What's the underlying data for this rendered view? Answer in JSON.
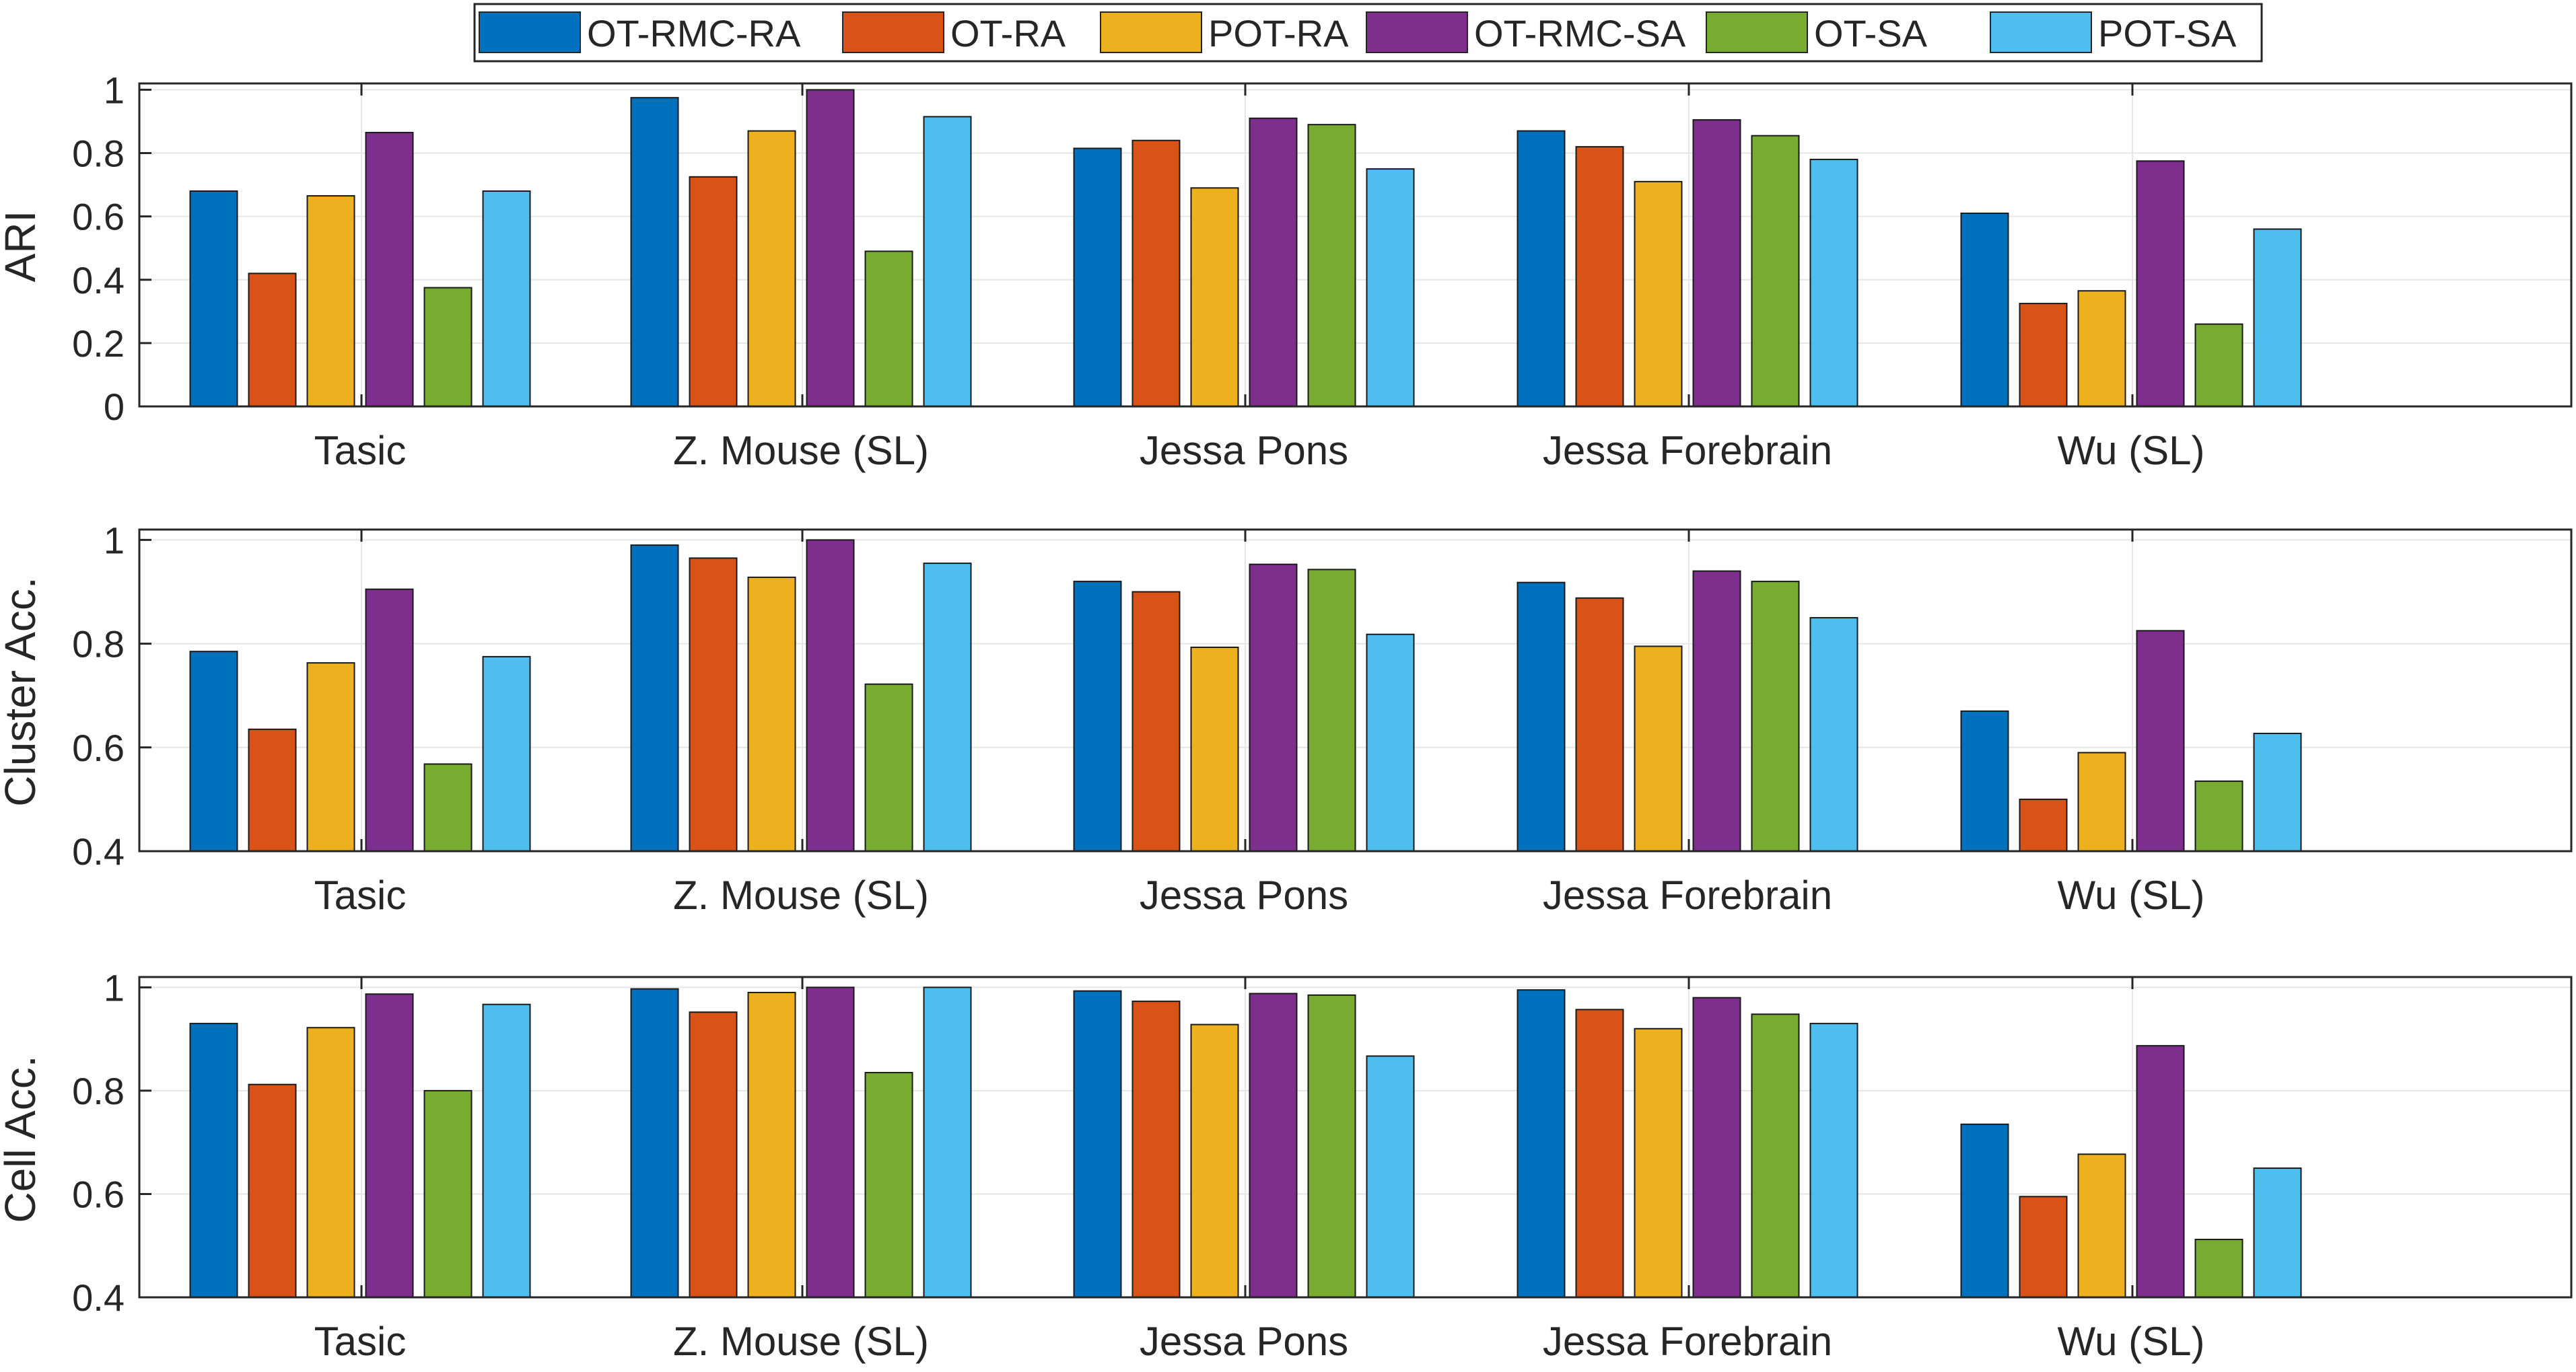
{
  "chart_data": {
    "type": "bar",
    "legend": {
      "position": "top",
      "entries": [
        "OT-RMC-RA",
        "OT-RA",
        "POT-RA",
        "OT-RMC-SA",
        "OT-SA",
        "POT-SA"
      ],
      "colors": [
        "#0072BD",
        "#D95319",
        "#EDB120",
        "#7E2F8E",
        "#77AC30",
        "#4DBEEE"
      ]
    },
    "categories": [
      "Tasic",
      "Z. Mouse (SL)",
      "Jessa Pons",
      "Jessa Forebrain",
      "Wu (SL)"
    ],
    "panels": [
      {
        "ylabel": "ARI",
        "ylim": [
          0,
          1.02
        ],
        "yticks": [
          "0",
          "0.2",
          "0.4",
          "0.6",
          "0.8",
          "1"
        ],
        "yticks_values": [
          0,
          0.2,
          0.4,
          0.6,
          0.8,
          1
        ],
        "grid": true,
        "series": [
          {
            "name": "OT-RMC-RA",
            "values": [
              0.68,
              0.975,
              0.815,
              0.87,
              0.61
            ]
          },
          {
            "name": "OT-RA",
            "values": [
              0.42,
              0.725,
              0.84,
              0.82,
              0.325
            ]
          },
          {
            "name": "POT-RA",
            "values": [
              0.665,
              0.87,
              0.69,
              0.71,
              0.365
            ]
          },
          {
            "name": "OT-RMC-SA",
            "values": [
              0.865,
              1.0,
              0.91,
              0.905,
              0.775
            ]
          },
          {
            "name": "OT-SA",
            "values": [
              0.375,
              0.49,
              0.89,
              0.855,
              0.26
            ]
          },
          {
            "name": "POT-SA",
            "values": [
              0.68,
              0.915,
              0.75,
              0.78,
              0.56
            ]
          }
        ]
      },
      {
        "ylabel": "Cluster Acc.",
        "ylim": [
          0.4,
          1.02
        ],
        "yticks": [
          "0.4",
          "0.6",
          "0.8",
          "1"
        ],
        "yticks_values": [
          0.4,
          0.6,
          0.8,
          1
        ],
        "grid": true,
        "series": [
          {
            "name": "OT-RMC-RA",
            "values": [
              0.785,
              0.99,
              0.92,
              0.918,
              0.67
            ]
          },
          {
            "name": "OT-RA",
            "values": [
              0.635,
              0.965,
              0.9,
              0.888,
              0.5
            ]
          },
          {
            "name": "POT-RA",
            "values": [
              0.763,
              0.928,
              0.793,
              0.795,
              0.59
            ]
          },
          {
            "name": "OT-RMC-SA",
            "values": [
              0.905,
              1.0,
              0.953,
              0.94,
              0.825
            ]
          },
          {
            "name": "OT-SA",
            "values": [
              0.568,
              0.722,
              0.943,
              0.92,
              0.535
            ]
          },
          {
            "name": "POT-SA",
            "values": [
              0.775,
              0.955,
              0.818,
              0.85,
              0.627
            ]
          }
        ]
      },
      {
        "ylabel": "Cell Acc.",
        "ylim": [
          0.4,
          1.02
        ],
        "yticks": [
          "0.4",
          "0.6",
          "0.8",
          "1"
        ],
        "yticks_values": [
          0.4,
          0.6,
          0.8,
          1
        ],
        "grid": true,
        "series": [
          {
            "name": "OT-RMC-RA",
            "values": [
              0.93,
              0.997,
              0.993,
              0.995,
              0.735
            ]
          },
          {
            "name": "OT-RA",
            "values": [
              0.812,
              0.952,
              0.973,
              0.957,
              0.595
            ]
          },
          {
            "name": "POT-RA",
            "values": [
              0.922,
              0.99,
              0.928,
              0.92,
              0.677
            ]
          },
          {
            "name": "OT-RMC-SA",
            "values": [
              0.987,
              1.0,
              0.988,
              0.98,
              0.887
            ]
          },
          {
            "name": "OT-SA",
            "values": [
              0.8,
              0.835,
              0.985,
              0.948,
              0.512
            ]
          },
          {
            "name": "POT-SA",
            "values": [
              0.967,
              1.0,
              0.867,
              0.93,
              0.65
            ]
          }
        ]
      }
    ]
  }
}
